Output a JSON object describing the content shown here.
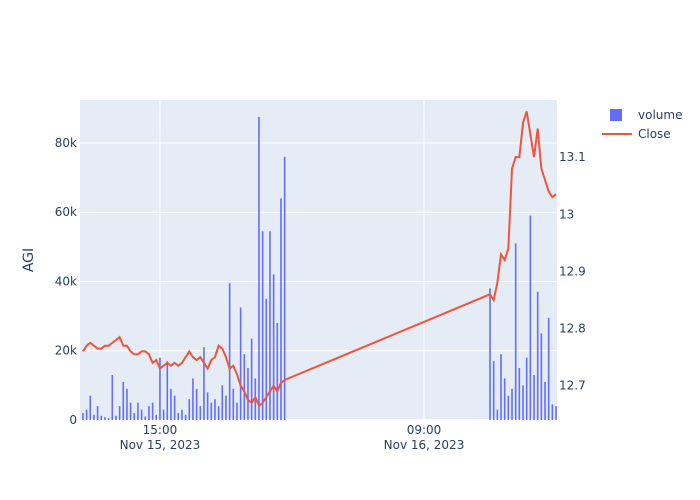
{
  "chart_data": {
    "type": "bar-line",
    "y_label": "AGI",
    "x": [
      "2023-11-15 09:45",
      "2023-11-15 10:00",
      "2023-11-15 10:15",
      "2023-11-15 10:30",
      "2023-11-15 10:45",
      "2023-11-15 11:00",
      "2023-11-15 11:15",
      "2023-11-15 11:30",
      "2023-11-15 11:45",
      "2023-11-15 12:00",
      "2023-11-15 12:15",
      "2023-11-15 12:30",
      "2023-11-15 12:45",
      "2023-11-15 13:00",
      "2023-11-15 13:15",
      "2023-11-15 13:30",
      "2023-11-15 13:45",
      "2023-11-15 14:00",
      "2023-11-15 14:15",
      "2023-11-15 14:30",
      "2023-11-15 14:45",
      "2023-11-15 15:00",
      "2023-11-15 15:15",
      "2023-11-15 15:30",
      "2023-11-15 15:45",
      "2023-11-15 16:00",
      "2023-11-15 16:15",
      "2023-11-15 16:30",
      "2023-11-15 16:45",
      "2023-11-15 17:00",
      "2023-11-15 17:15",
      "2023-11-15 17:30",
      "2023-11-15 17:45",
      "2023-11-15 18:00",
      "2023-11-15 18:15",
      "2023-11-15 18:30",
      "2023-11-15 18:45",
      "2023-11-15 19:00",
      "2023-11-15 19:15",
      "2023-11-15 19:30",
      "2023-11-15 19:45",
      "2023-11-15 20:00",
      "2023-11-15 20:15",
      "2023-11-15 20:30",
      "2023-11-15 20:45",
      "2023-11-15 21:00",
      "2023-11-15 21:15",
      "2023-11-15 21:30",
      "2023-11-15 21:45",
      "2023-11-15 22:00",
      "2023-11-15 22:15",
      "2023-11-15 22:30",
      "2023-11-15 22:45",
      "2023-11-15 23:00",
      "2023-11-15 23:15",
      "2023-11-15 23:30",
      "2023-11-16 13:30",
      "2023-11-16 13:45",
      "2023-11-16 14:00",
      "2023-11-16 14:15",
      "2023-11-16 14:30",
      "2023-11-16 14:45",
      "2023-11-16 15:00",
      "2023-11-16 15:15",
      "2023-11-16 15:30",
      "2023-11-16 15:45",
      "2023-11-16 16:00",
      "2023-11-16 16:15",
      "2023-11-16 16:30",
      "2023-11-16 16:45",
      "2023-11-16 17:00",
      "2023-11-16 17:15",
      "2023-11-16 17:30",
      "2023-11-16 17:45",
      "2023-11-16 18:00"
    ],
    "series": [
      {
        "name": "volume",
        "color": "#636efa",
        "kind": "bar",
        "values": [
          2000,
          3000,
          7000,
          1500,
          4000,
          1200,
          800,
          500,
          13000,
          1200,
          4000,
          11000,
          9000,
          5000,
          2000,
          5000,
          3000,
          1000,
          4000,
          5000,
          1500,
          18000,
          3000,
          17000,
          9000,
          7000,
          2000,
          3000,
          1500,
          6000,
          12000,
          9000,
          4000,
          21000,
          8000,
          5000,
          6000,
          4000,
          10000,
          7000,
          39500,
          9000,
          5000,
          32500,
          19000,
          15000,
          23500,
          12000,
          87500,
          54500,
          35000,
          54500,
          42000,
          28000,
          64000,
          76000,
          38000,
          17000,
          3000,
          19000,
          12000,
          7000,
          9000,
          51000,
          15000,
          10000,
          18000,
          59000,
          13000,
          37000,
          25000,
          11000,
          29500,
          4500,
          4000
        ]
      },
      {
        "name": "Close",
        "color": "#EF553B",
        "kind": "line",
        "axis": "y2",
        "values": [
          12.76,
          12.77,
          12.775,
          12.77,
          12.765,
          12.765,
          12.77,
          12.77,
          12.775,
          12.78,
          12.785,
          12.77,
          12.77,
          12.76,
          12.755,
          12.755,
          12.76,
          12.76,
          12.755,
          12.74,
          12.745,
          12.73,
          12.735,
          12.74,
          12.735,
          12.74,
          12.735,
          12.74,
          12.75,
          12.76,
          12.75,
          12.745,
          12.75,
          12.74,
          12.73,
          12.745,
          12.75,
          12.77,
          12.765,
          12.75,
          12.73,
          12.735,
          12.72,
          12.7,
          12.69,
          12.675,
          12.67,
          12.68,
          12.665,
          12.67,
          12.68,
          12.69,
          12.7,
          12.69,
          12.705,
          12.71,
          12.86,
          12.85,
          12.88,
          12.93,
          12.92,
          12.94,
          13.08,
          13.1,
          13.1,
          13.16,
          13.18,
          13.14,
          13.1,
          13.15,
          13.08,
          13.06,
          13.04,
          13.03,
          13.035
        ]
      }
    ],
    "xlim": [
      "2023-11-15 09:33",
      "2023-11-16 18:04"
    ],
    "xticks": [
      {
        "value": "2023-11-15 15:00",
        "label": "15:00\nNov 15, 2023"
      },
      {
        "value": "2023-11-16 09:00",
        "label": "09:00\nNov 16, 2023"
      }
    ],
    "ylim": [
      0,
      92400
    ],
    "yticks": [
      0,
      {
        "value": 20000,
        "label": "20k"
      },
      {
        "value": 40000,
        "label": "40k"
      },
      {
        "value": 60000,
        "label": "60k"
      },
      {
        "value": 80000,
        "label": "80k"
      }
    ],
    "y2lim": [
      12.64,
      13.2
    ],
    "y2ticks": [
      12.7,
      12.8,
      12.9,
      13,
      13.1
    ],
    "grid": true,
    "legend": "top-right"
  }
}
